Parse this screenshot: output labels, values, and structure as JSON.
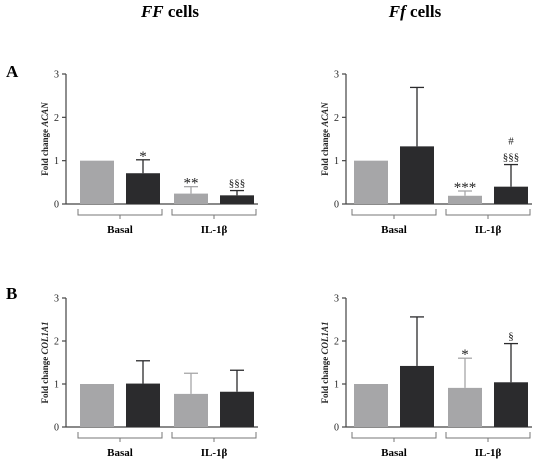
{
  "column_titles": [
    {
      "italic": "FF",
      "rest": " cells"
    },
    {
      "italic": "Ff",
      "rest": " cells"
    }
  ],
  "panel_letters": [
    "A",
    "B"
  ],
  "colors": {
    "first_bar": "#a6a6a8",
    "second_bar": "#2b2b2d",
    "axis": "#444444"
  },
  "chart_data": [
    {
      "type": "bar",
      "panel": "A",
      "column": "FF cells",
      "ylabel_prefix": "Fold change ",
      "ylabel_gene": "ACAN",
      "ylim": [
        0,
        3
      ],
      "yticks": [
        "0",
        "1",
        "2",
        "3"
      ],
      "groups": [
        "Basal",
        "IL-1β"
      ],
      "bars": [
        {
          "group": "Basal",
          "value": 1.0,
          "error": 0.0,
          "annotation": []
        },
        {
          "group": "Basal",
          "value": 0.71,
          "error": 0.31,
          "annotation": [
            "*"
          ]
        },
        {
          "group": "IL-1β",
          "value": 0.24,
          "error": 0.16,
          "annotation": [
            "**"
          ]
        },
        {
          "group": "IL-1β",
          "value": 0.2,
          "error": 0.11,
          "annotation": [
            "§§§"
          ]
        }
      ]
    },
    {
      "type": "bar",
      "panel": "A",
      "column": "Ff cells",
      "ylabel_prefix": "Fold change ",
      "ylabel_gene": "ACAN",
      "ylim": [
        0,
        3
      ],
      "yticks": [
        "0",
        "1",
        "2",
        "3"
      ],
      "groups": [
        "Basal",
        "IL-1β"
      ],
      "bars": [
        {
          "group": "Basal",
          "value": 1.0,
          "error": 0.0,
          "annotation": []
        },
        {
          "group": "Basal",
          "value": 1.33,
          "error": 1.36,
          "annotation": []
        },
        {
          "group": "IL-1β",
          "value": 0.19,
          "error": 0.11,
          "annotation": [
            "***"
          ]
        },
        {
          "group": "IL-1β",
          "value": 0.4,
          "error": 0.51,
          "annotation": [
            "§§§",
            "#"
          ]
        }
      ]
    },
    {
      "type": "bar",
      "panel": "B",
      "column": "FF cells",
      "ylabel_prefix": "Fold change ",
      "ylabel_gene": "COL1A1",
      "ylim": [
        0,
        3
      ],
      "yticks": [
        "0",
        "1",
        "2",
        "3"
      ],
      "groups": [
        "Basal",
        "IL-1β"
      ],
      "bars": [
        {
          "group": "Basal",
          "value": 1.0,
          "error": 0.0,
          "annotation": []
        },
        {
          "group": "Basal",
          "value": 1.01,
          "error": 0.53,
          "annotation": []
        },
        {
          "group": "IL-1β",
          "value": 0.77,
          "error": 0.48,
          "annotation": []
        },
        {
          "group": "IL-1β",
          "value": 0.82,
          "error": 0.5,
          "annotation": []
        }
      ]
    },
    {
      "type": "bar",
      "panel": "B",
      "column": "Ff cells",
      "ylabel_prefix": "Fold change ",
      "ylabel_gene": "COL1A1",
      "ylim": [
        0,
        3
      ],
      "yticks": [
        "0",
        "1",
        "2",
        "3"
      ],
      "groups": [
        "Basal",
        "IL-1β"
      ],
      "bars": [
        {
          "group": "Basal",
          "value": 1.0,
          "error": 0.0,
          "annotation": []
        },
        {
          "group": "Basal",
          "value": 1.42,
          "error": 1.14,
          "annotation": []
        },
        {
          "group": "IL-1β",
          "value": 0.91,
          "error": 0.69,
          "annotation": [
            "*"
          ]
        },
        {
          "group": "IL-1β",
          "value": 1.04,
          "error": 0.9,
          "annotation": [
            "§"
          ]
        }
      ]
    }
  ]
}
